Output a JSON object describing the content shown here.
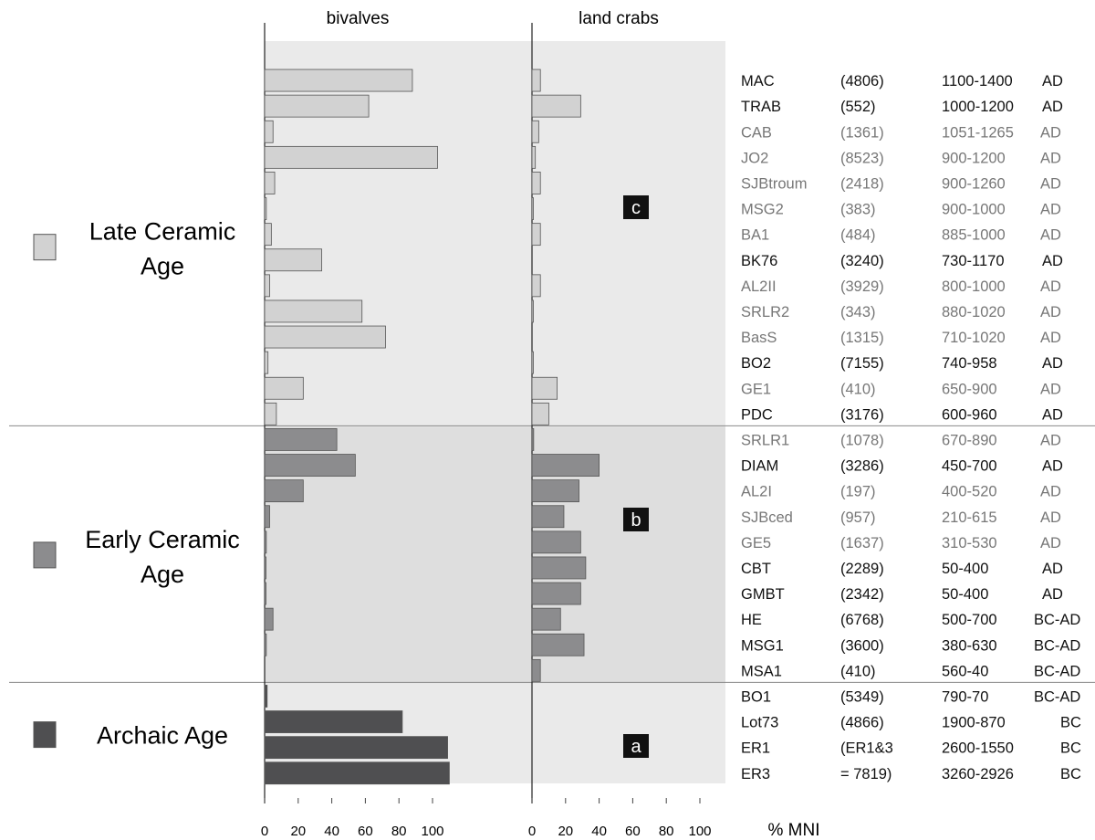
{
  "chart_data": {
    "type": "bar",
    "orientation": "horizontal",
    "panels": [
      {
        "key": "bivalves",
        "title": "bivalves"
      },
      {
        "key": "land_crabs",
        "title": "land crabs"
      }
    ],
    "xlabel": "% MNI",
    "xlim": [
      0,
      100
    ],
    "xticks": [
      "0",
      "20",
      "40",
      "60",
      "80",
      "100"
    ],
    "groups": [
      {
        "label": "Late Ceramic Age",
        "lines": [
          "Late Ceramic",
          "Age"
        ],
        "color": "#d2d2d2",
        "zone": "c"
      },
      {
        "label": "Early Ceramic Age",
        "lines": [
          "Early Ceramic",
          "Age"
        ],
        "color": "#8c8c8e",
        "zone": "b"
      },
      {
        "label": "Archaic Age",
        "lines": [
          "Archaic Age"
        ],
        "color": "#4f4f51",
        "zone": "a"
      }
    ],
    "sites": [
      {
        "name": "MAC",
        "mni": "(4806)",
        "date": "1100-1400",
        "era": "AD",
        "group": 0,
        "dark": true,
        "bivalves": 88,
        "land_crabs": 5
      },
      {
        "name": "TRAB",
        "mni": "(552)",
        "date": "1000-1200",
        "era": "AD",
        "group": 0,
        "dark": true,
        "bivalves": 62,
        "land_crabs": 29
      },
      {
        "name": "CAB",
        "mni": "(1361)",
        "date": "1051-1265",
        "era": "AD",
        "group": 0,
        "dark": false,
        "bivalves": 5,
        "land_crabs": 4
      },
      {
        "name": "JO2",
        "mni": "(8523)",
        "date": "900-1200",
        "era": "AD",
        "group": 0,
        "dark": false,
        "bivalves": 103,
        "land_crabs": 2
      },
      {
        "name": "SJBtroum",
        "mni": "(2418)",
        "date": "900-1260",
        "era": "AD",
        "group": 0,
        "dark": false,
        "bivalves": 6,
        "land_crabs": 5
      },
      {
        "name": "MSG2",
        "mni": "(383)",
        "date": "900-1000",
        "era": "AD",
        "group": 0,
        "dark": false,
        "bivalves": 1,
        "land_crabs": 0.5
      },
      {
        "name": "BA1",
        "mni": "(484)",
        "date": "885-1000",
        "era": "AD",
        "group": 0,
        "dark": false,
        "bivalves": 4,
        "land_crabs": 5
      },
      {
        "name": "BK76",
        "mni": "(3240)",
        "date": "730-1170",
        "era": "AD",
        "group": 0,
        "dark": true,
        "bivalves": 34,
        "land_crabs": 0
      },
      {
        "name": "AL2II",
        "mni": "(3929)",
        "date": "800-1000",
        "era": "AD",
        "group": 0,
        "dark": false,
        "bivalves": 3,
        "land_crabs": 5
      },
      {
        "name": "SRLR2",
        "mni": "(343)",
        "date": "880-1020",
        "era": "AD",
        "group": 0,
        "dark": false,
        "bivalves": 58,
        "land_crabs": 0.5
      },
      {
        "name": "BasS",
        "mni": "(1315)",
        "date": "710-1020",
        "era": "AD",
        "group": 0,
        "dark": false,
        "bivalves": 72,
        "land_crabs": 0
      },
      {
        "name": "BO2",
        "mni": "(7155)",
        "date": "740-958",
        "era": "AD",
        "group": 0,
        "dark": true,
        "bivalves": 2,
        "land_crabs": 0.5
      },
      {
        "name": "GE1",
        "mni": "(410)",
        "date": "650-900",
        "era": "AD",
        "group": 0,
        "dark": false,
        "bivalves": 23,
        "land_crabs": 15
      },
      {
        "name": "PDC",
        "mni": "(3176)",
        "date": "600-960",
        "era": "AD",
        "group": 0,
        "dark": true,
        "bivalves": 7,
        "land_crabs": 10
      },
      {
        "name": "SRLR1",
        "mni": "(1078)",
        "date": "670-890",
        "era": "AD",
        "group": 1,
        "dark": false,
        "bivalves": 43,
        "land_crabs": 1
      },
      {
        "name": "DIAM",
        "mni": "(3286)",
        "date": "450-700",
        "era": "AD",
        "group": 1,
        "dark": true,
        "bivalves": 54,
        "land_crabs": 40
      },
      {
        "name": "AL2I",
        "mni": "(197)",
        "date": "400-520",
        "era": "AD",
        "group": 1,
        "dark": false,
        "bivalves": 23,
        "land_crabs": 28
      },
      {
        "name": "SJBced",
        "mni": "(957)",
        "date": "210-615",
        "era": "AD",
        "group": 1,
        "dark": false,
        "bivalves": 3,
        "land_crabs": 19
      },
      {
        "name": "GE5",
        "mni": "(1637)",
        "date": "310-530",
        "era": "AD",
        "group": 1,
        "dark": false,
        "bivalves": 1,
        "land_crabs": 29
      },
      {
        "name": "CBT",
        "mni": "(2289)",
        "date": "50-400",
        "era": "AD",
        "group": 1,
        "dark": true,
        "bivalves": 0.5,
        "land_crabs": 32
      },
      {
        "name": "GMBT",
        "mni": "(2342)",
        "date": "50-400",
        "era": "AD",
        "group": 1,
        "dark": true,
        "bivalves": 0.5,
        "land_crabs": 29
      },
      {
        "name": "HE",
        "mni": "(6768)",
        "date": "500-700",
        "era": "BC-AD",
        "group": 1,
        "dark": true,
        "bivalves": 5,
        "land_crabs": 17
      },
      {
        "name": "MSG1",
        "mni": "(3600)",
        "date": "380-630",
        "era": "BC-AD",
        "group": 1,
        "dark": true,
        "bivalves": 1,
        "land_crabs": 31
      },
      {
        "name": "MSA1",
        "mni": "(410)",
        "date": "560-40",
        "era": "BC-AD",
        "group": 1,
        "dark": true,
        "bivalves": 0,
        "land_crabs": 5
      },
      {
        "name": "BO1",
        "mni": "(5349)",
        "date": "790-70",
        "era": "BC-AD",
        "group": 2,
        "dark": true,
        "bivalves": 1.5,
        "land_crabs": 0
      },
      {
        "name": "Lot73",
        "mni": "(4866)",
        "date": "1900-870",
        "era": "BC",
        "group": 2,
        "dark": true,
        "bivalves": 82,
        "land_crabs": 0
      },
      {
        "name": "ER1",
        "mni": "(ER1&3",
        "date": "2600-1550",
        "era": "BC",
        "group": 2,
        "dark": true,
        "bivalves": 109,
        "land_crabs": 0
      },
      {
        "name": "ER3",
        "mni": "= 7819)",
        "date": "3260-2926",
        "era": "BC",
        "group": 2,
        "dark": true,
        "bivalves": 110,
        "land_crabs": 0
      }
    ]
  }
}
